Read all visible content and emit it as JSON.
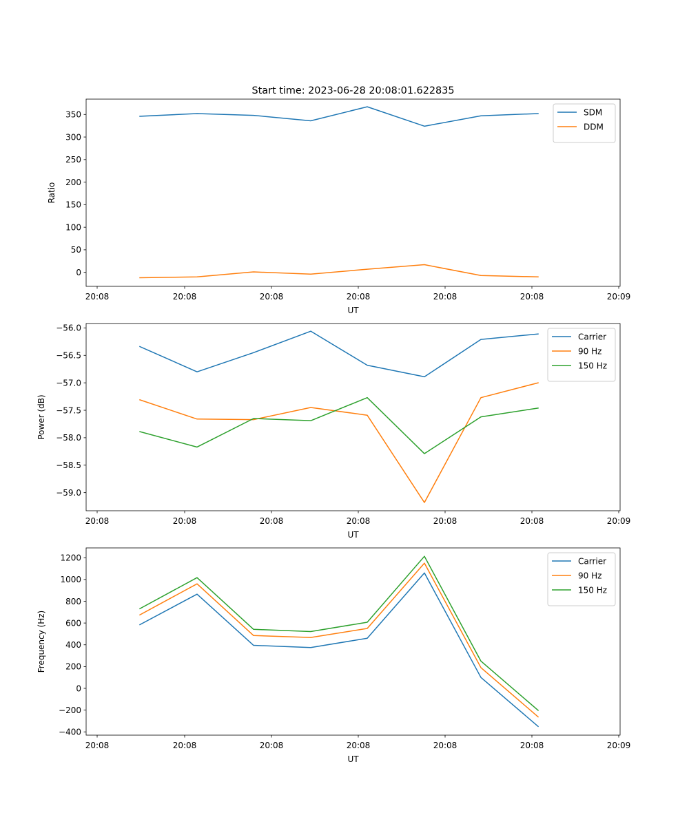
{
  "title": "Start time: 2023-06-28 20:08:01.622835",
  "chart_data": [
    {
      "type": "line",
      "xlabel": "UT",
      "ylabel": "Ratio",
      "x_tick_labels": [
        "20:08",
        "20:08",
        "20:08",
        "20:08",
        "20:08",
        "20:08",
        "20:09"
      ],
      "y_tick_labels": [
        "0",
        "50",
        "100",
        "150",
        "200",
        "250",
        "300",
        "350"
      ],
      "ylim": [
        -31,
        384
      ],
      "legend_position": "upper-right",
      "grid": false,
      "series": [
        {
          "name": "SDM",
          "color": "#1f77b4",
          "values": [
            346,
            352,
            348,
            336,
            367,
            324,
            347,
            352
          ]
        },
        {
          "name": "DDM",
          "color": "#ff7f0e",
          "values": [
            -12,
            -10,
            1,
            -4,
            7,
            17,
            -7,
            -10
          ]
        }
      ]
    },
    {
      "type": "line",
      "xlabel": "UT",
      "ylabel": "Power (dB)",
      "x_tick_labels": [
        "20:08",
        "20:08",
        "20:08",
        "20:08",
        "20:08",
        "20:08",
        "20:09"
      ],
      "y_tick_labels": [
        "−59.0",
        "−58.5",
        "−58.0",
        "−57.5",
        "−57.0",
        "−56.5",
        "−56.0"
      ],
      "ylim": [
        -59.33,
        -55.92
      ],
      "legend_position": "upper-right",
      "grid": false,
      "series": [
        {
          "name": "Carrier",
          "color": "#1f77b4",
          "values": [
            -56.34,
            -56.8,
            -56.45,
            -56.06,
            -56.68,
            -56.89,
            -56.21,
            -56.11
          ]
        },
        {
          "name": "90 Hz",
          "color": "#ff7f0e",
          "values": [
            -57.31,
            -57.66,
            -57.67,
            -57.45,
            -57.59,
            -59.18,
            -57.27,
            -57.0
          ]
        },
        {
          "name": "150 Hz",
          "color": "#2ca02c",
          "values": [
            -57.89,
            -58.17,
            -57.65,
            -57.69,
            -57.27,
            -58.29,
            -57.62,
            -57.46
          ]
        }
      ]
    },
    {
      "type": "line",
      "xlabel": "UT",
      "ylabel": "Frequency (Hz)",
      "x_tick_labels": [
        "20:08",
        "20:08",
        "20:08",
        "20:08",
        "20:08",
        "20:08",
        "20:09"
      ],
      "y_tick_labels": [
        "−400",
        "−200",
        "0",
        "200",
        "400",
        "600",
        "800",
        "1000",
        "1200"
      ],
      "ylim": [
        -430,
        1290
      ],
      "legend_position": "upper-right",
      "grid": false,
      "series": [
        {
          "name": "Carrier",
          "color": "#1f77b4",
          "values": [
            585,
            865,
            395,
            375,
            460,
            1060,
            100,
            -350
          ]
        },
        {
          "name": "90 Hz",
          "color": "#ff7f0e",
          "values": [
            675,
            960,
            485,
            467,
            550,
            1150,
            190,
            -262
          ]
        },
        {
          "name": "150 Hz",
          "color": "#2ca02c",
          "values": [
            732,
            1017,
            542,
            522,
            607,
            1213,
            250,
            -202
          ]
        }
      ]
    }
  ]
}
